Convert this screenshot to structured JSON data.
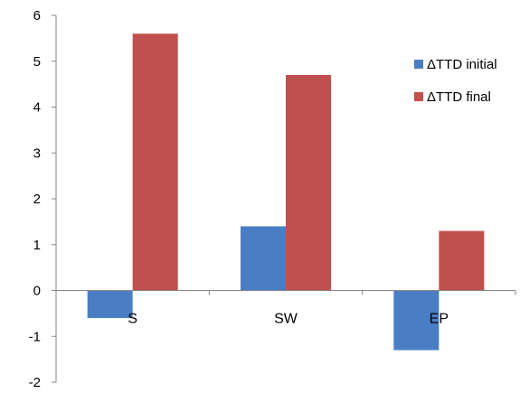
{
  "chart_data": {
    "type": "bar",
    "categories": [
      "S",
      "SW",
      "EP"
    ],
    "series": [
      {
        "name": "ΔTTD initial",
        "values": [
          -0.6,
          1.4,
          -1.3
        ],
        "color": "#4a7ec4"
      },
      {
        "name": "ΔTTD final",
        "values": [
          5.6,
          4.7,
          1.3
        ],
        "color": "#c0504d"
      }
    ],
    "ylim": [
      -2,
      6
    ],
    "yticks": [
      "-2",
      "-1",
      "0",
      "1",
      "2",
      "3",
      "4",
      "5",
      "6"
    ],
    "legend_position": "right",
    "grid": false
  }
}
